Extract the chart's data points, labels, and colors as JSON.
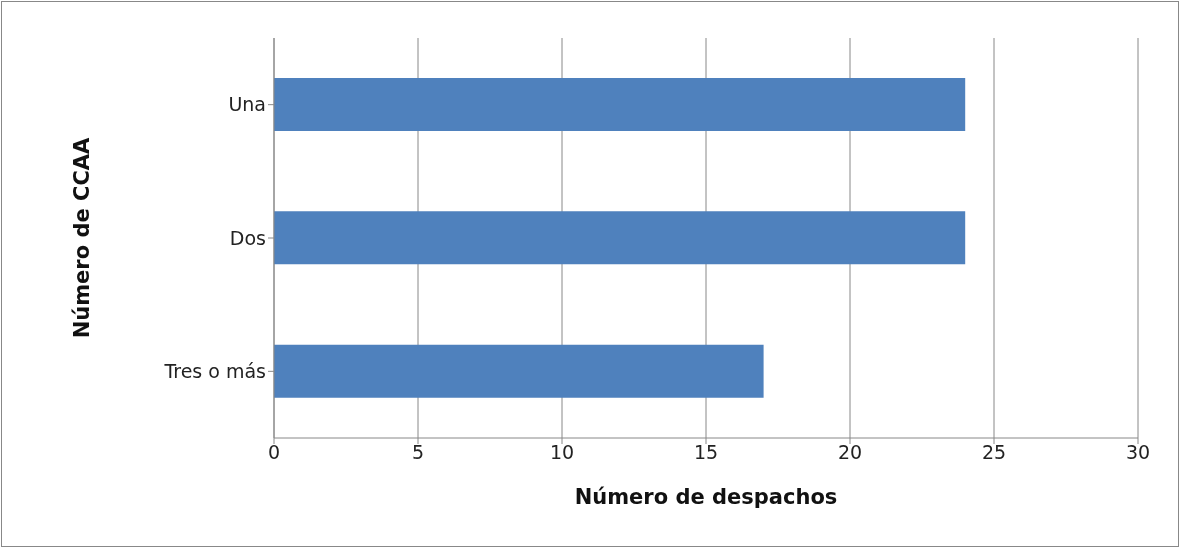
{
  "chart_data": {
    "type": "bar",
    "orientation": "horizontal",
    "categories": [
      "Una",
      "Dos",
      "Tres o más"
    ],
    "values": [
      24,
      24,
      17
    ],
    "color": "#4f81bd",
    "xlabel": "Número de despachos",
    "ylabel": "Número de CCAA",
    "xlim": [
      0,
      30
    ],
    "xticks": [
      0,
      5,
      10,
      15,
      20,
      25,
      30
    ],
    "grid": "x",
    "legend": false
  }
}
